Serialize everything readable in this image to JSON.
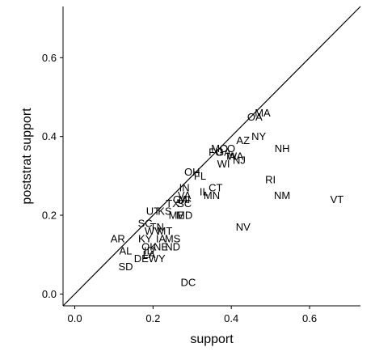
{
  "chart_data": {
    "type": "scatter",
    "xlabel": "support",
    "ylabel": "poststrat support",
    "xlim": [
      -0.03,
      0.73
    ],
    "ylim": [
      -0.03,
      0.73
    ],
    "x_ticks": [
      0.0,
      0.2,
      0.4,
      0.6
    ],
    "y_ticks": [
      0.0,
      0.2,
      0.4,
      0.6
    ],
    "x_tick_labels": [
      "0.0",
      "0.2",
      "0.4",
      "0.6"
    ],
    "y_tick_labels": [
      "0.0",
      "0.2",
      "0.4",
      "0.6"
    ],
    "reference_line": "y = x",
    "grid": false,
    "points": [
      {
        "label": "MA",
        "x": 0.48,
        "y": 0.46
      },
      {
        "label": "OA",
        "x": 0.46,
        "y": 0.45
      },
      {
        "label": "NY",
        "x": 0.47,
        "y": 0.4
      },
      {
        "label": "AZ",
        "x": 0.43,
        "y": 0.39
      },
      {
        "label": "NH",
        "x": 0.53,
        "y": 0.37
      },
      {
        "label": "MO",
        "x": 0.37,
        "y": 0.37
      },
      {
        "label": "CO",
        "x": 0.39,
        "y": 0.37
      },
      {
        "label": "FU",
        "x": 0.36,
        "y": 0.36
      },
      {
        "label": "GA",
        "x": 0.38,
        "y": 0.36
      },
      {
        "label": "IA",
        "x": 0.4,
        "y": 0.35
      },
      {
        "label": "WA",
        "x": 0.41,
        "y": 0.35
      },
      {
        "label": "NJ",
        "x": 0.42,
        "y": 0.34
      },
      {
        "label": "WI",
        "x": 0.38,
        "y": 0.33
      },
      {
        "label": "OH",
        "x": 0.3,
        "y": 0.31
      },
      {
        "label": "FL",
        "x": 0.32,
        "y": 0.3
      },
      {
        "label": "RI",
        "x": 0.5,
        "y": 0.29
      },
      {
        "label": "CT",
        "x": 0.36,
        "y": 0.27
      },
      {
        "label": "IL",
        "x": 0.33,
        "y": 0.26
      },
      {
        "label": "MN",
        "x": 0.35,
        "y": 0.25
      },
      {
        "label": "IN",
        "x": 0.28,
        "y": 0.27
      },
      {
        "label": "NM",
        "x": 0.53,
        "y": 0.25
      },
      {
        "label": "VT",
        "x": 0.67,
        "y": 0.24
      },
      {
        "label": "VA",
        "x": 0.28,
        "y": 0.25
      },
      {
        "label": "GA",
        "x": 0.27,
        "y": 0.24
      },
      {
        "label": "TX",
        "x": 0.25,
        "y": 0.23
      },
      {
        "label": "MI",
        "x": 0.28,
        "y": 0.24
      },
      {
        "label": "SC",
        "x": 0.28,
        "y": 0.23
      },
      {
        "label": "UT",
        "x": 0.2,
        "y": 0.21
      },
      {
        "label": "KS",
        "x": 0.23,
        "y": 0.21
      },
      {
        "label": "ME",
        "x": 0.26,
        "y": 0.2
      },
      {
        "label": "MD",
        "x": 0.28,
        "y": 0.2
      },
      {
        "label": "SC",
        "x": 0.18,
        "y": 0.18
      },
      {
        "label": "NV",
        "x": 0.43,
        "y": 0.17
      },
      {
        "label": "TN",
        "x": 0.21,
        "y": 0.17
      },
      {
        "label": "WV",
        "x": 0.2,
        "y": 0.16
      },
      {
        "label": "MT",
        "x": 0.23,
        "y": 0.16
      },
      {
        "label": "AR",
        "x": 0.11,
        "y": 0.14
      },
      {
        "label": "KY",
        "x": 0.18,
        "y": 0.14
      },
      {
        "label": "IA",
        "x": 0.22,
        "y": 0.14
      },
      {
        "label": "MS",
        "x": 0.25,
        "y": 0.14
      },
      {
        "label": "OK",
        "x": 0.19,
        "y": 0.12
      },
      {
        "label": "NE",
        "x": 0.22,
        "y": 0.12
      },
      {
        "label": "ND",
        "x": 0.25,
        "y": 0.12
      },
      {
        "label": "AL",
        "x": 0.13,
        "y": 0.11
      },
      {
        "label": "ID",
        "x": 0.19,
        "y": 0.11
      },
      {
        "label": "LA",
        "x": 0.19,
        "y": 0.1
      },
      {
        "label": "DE",
        "x": 0.17,
        "y": 0.09
      },
      {
        "label": "WY",
        "x": 0.21,
        "y": 0.09
      },
      {
        "label": "SD",
        "x": 0.13,
        "y": 0.07
      },
      {
        "label": "DC",
        "x": 0.29,
        "y": 0.03
      }
    ]
  }
}
